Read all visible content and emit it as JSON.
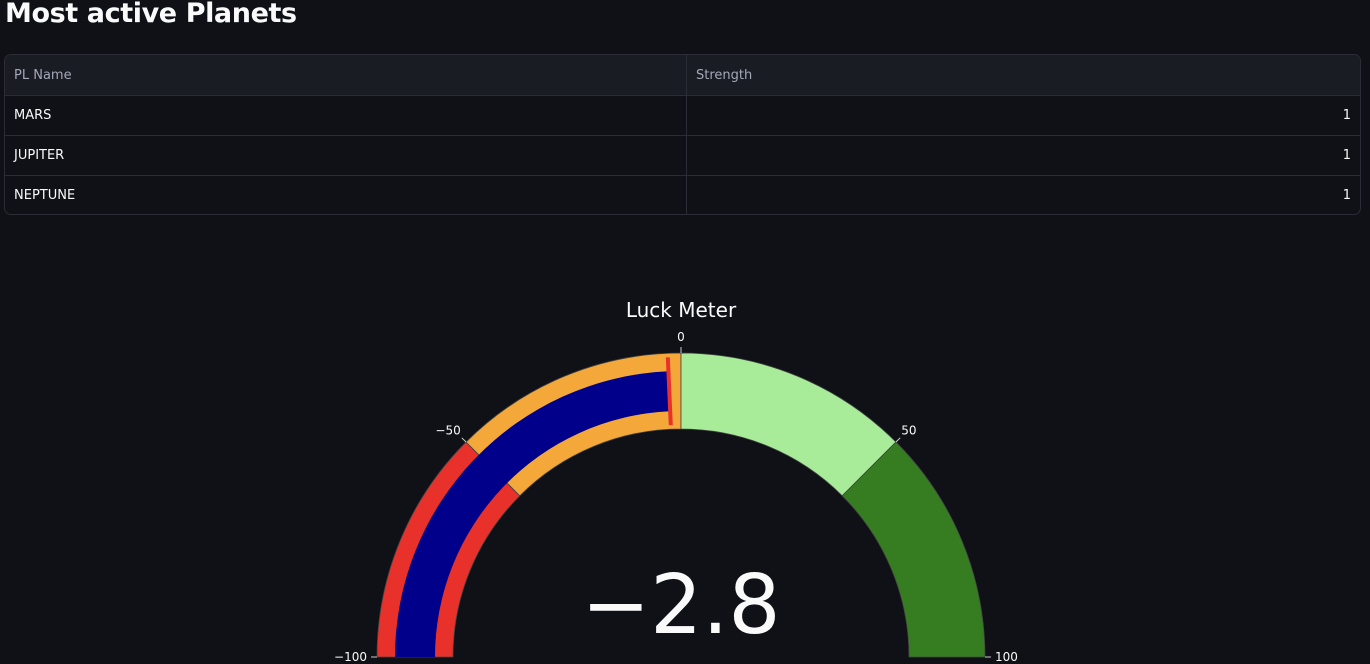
{
  "page": {
    "title": "Most active Planets"
  },
  "table": {
    "columns": [
      "PL Name",
      "Strength"
    ],
    "rows": [
      {
        "name": "MARS",
        "strength": "1"
      },
      {
        "name": "JUPITER",
        "strength": "1"
      },
      {
        "name": "NEPTUNE",
        "strength": "1"
      }
    ]
  },
  "gauge": {
    "title": "Luck Meter",
    "value": -2.8,
    "value_display": "−2.8",
    "range": [
      -100,
      100
    ],
    "ticks": [
      {
        "value": -100,
        "label": "−100"
      },
      {
        "value": -50,
        "label": "−50"
      },
      {
        "value": 0,
        "label": "0"
      },
      {
        "value": 50,
        "label": "50"
      },
      {
        "value": 100,
        "label": "100"
      }
    ],
    "steps": [
      {
        "from": -100,
        "to": -50,
        "color": "#e8312a"
      },
      {
        "from": -50,
        "to": 0,
        "color": "#f5a83a"
      },
      {
        "from": 0,
        "to": 50,
        "color": "#a8ec9a"
      },
      {
        "from": 50,
        "to": 100,
        "color": "#367d22"
      }
    ],
    "bar_color": "#00008b",
    "threshold": {
      "value": -2.8,
      "color": "#e8312a"
    }
  }
}
